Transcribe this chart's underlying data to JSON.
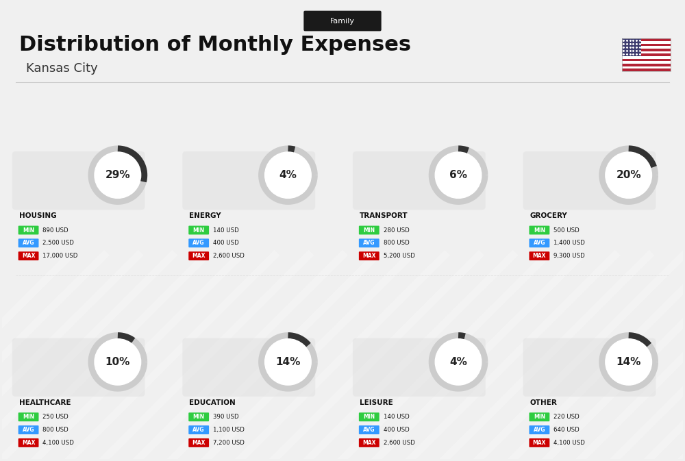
{
  "title": "Distribution of Monthly Expenses",
  "subtitle": "Kansas City",
  "tag": "Family",
  "bg_color": "#f0f0f0",
  "categories": [
    {
      "name": "HOUSING",
      "pct": 29,
      "min": "890 USD",
      "avg": "2,500 USD",
      "max": "17,000 USD",
      "row": 0,
      "col": 0
    },
    {
      "name": "ENERGY",
      "pct": 4,
      "min": "140 USD",
      "avg": "400 USD",
      "max": "2,600 USD",
      "row": 0,
      "col": 1
    },
    {
      "name": "TRANSPORT",
      "pct": 6,
      "min": "280 USD",
      "avg": "800 USD",
      "max": "5,200 USD",
      "row": 0,
      "col": 2
    },
    {
      "name": "GROCERY",
      "pct": 20,
      "min": "500 USD",
      "avg": "1,400 USD",
      "max": "9,300 USD",
      "row": 0,
      "col": 3
    },
    {
      "name": "HEALTHCARE",
      "pct": 10,
      "min": "250 USD",
      "avg": "800 USD",
      "max": "4,100 USD",
      "row": 1,
      "col": 0
    },
    {
      "name": "EDUCATION",
      "pct": 14,
      "min": "390 USD",
      "avg": "1,100 USD",
      "max": "7,200 USD",
      "row": 1,
      "col": 1
    },
    {
      "name": "LEISURE",
      "pct": 4,
      "min": "140 USD",
      "avg": "400 USD",
      "max": "2,600 USD",
      "row": 1,
      "col": 2
    },
    {
      "name": "OTHER",
      "pct": 14,
      "min": "220 USD",
      "avg": "640 USD",
      "max": "4,100 USD",
      "row": 1,
      "col": 3
    }
  ],
  "min_color": "#2ecc40",
  "avg_color": "#3399ff",
  "max_color": "#cc0000",
  "arc_filled_color": "#333333",
  "arc_empty_color": "#cccccc",
  "label_color": "#111111",
  "title_color": "#111111",
  "subtitle_color": "#333333"
}
